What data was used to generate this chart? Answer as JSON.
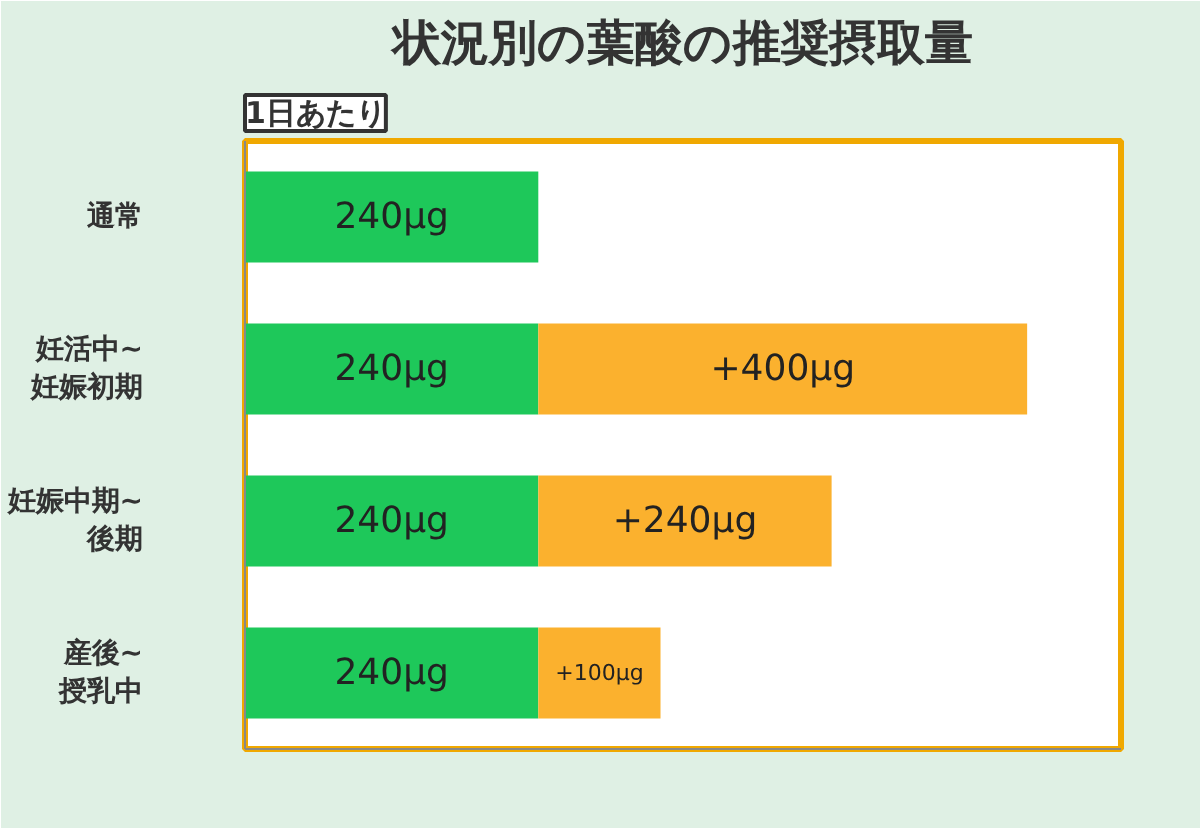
{
  "chart_data": {
    "type": "bar",
    "orientation": "horizontal",
    "stacked": true,
    "title": "状況別の葉酸の推奨摂取量",
    "subtitle": "1日あたり",
    "categories": [
      "通常",
      "妊活中~\n妊娠初期",
      "妊娠中期~\n後期",
      "産後~\n授乳中"
    ],
    "tick_labels": "y",
    "grid": false,
    "series": [
      {
        "color": "#1ec85a",
        "values": [
          240,
          240,
          240,
          240
        ],
        "value_labels": [
          "240µg",
          "240µg",
          "240µg",
          "240µg"
        ]
      },
      {
        "color": "#fbb12e",
        "values": [
          null,
          400,
          240,
          100
        ],
        "value_labels": [
          null,
          "+400µg",
          "+240µg",
          "+100µg"
        ]
      }
    ]
  }
}
